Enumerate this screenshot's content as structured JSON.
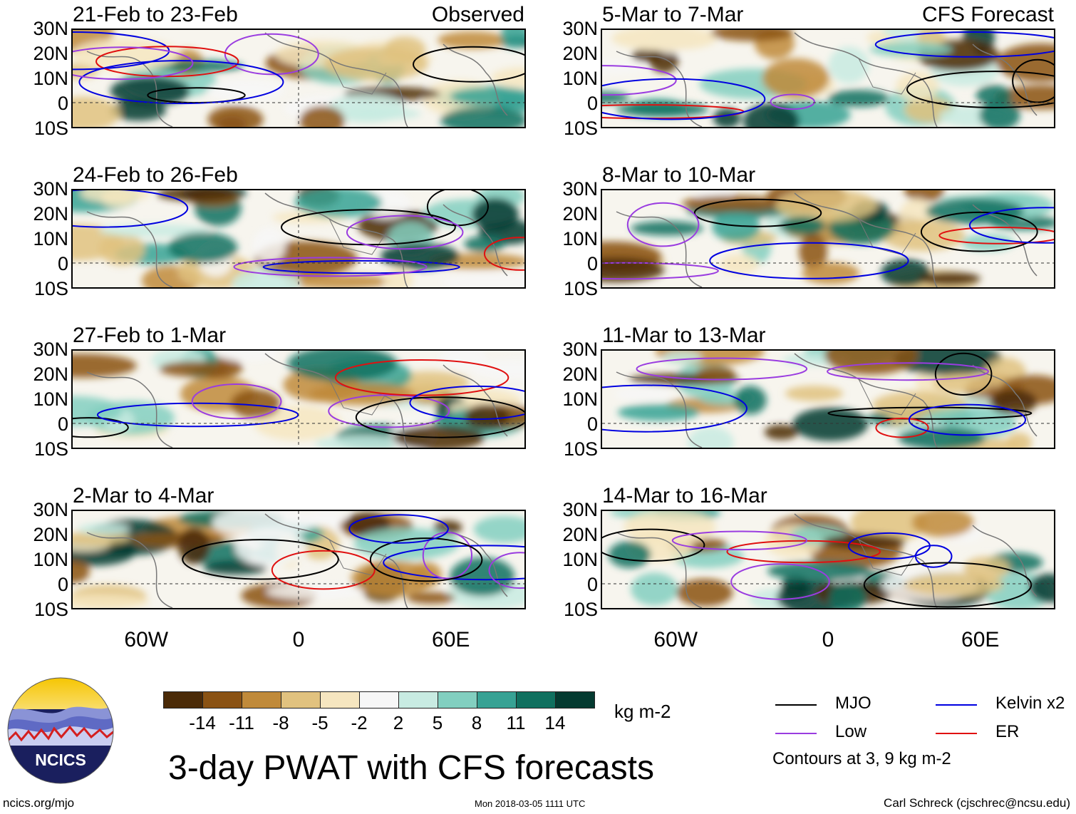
{
  "panels": [
    {
      "title": "21-Feb to 23-Feb",
      "tag": "Observed",
      "seed": 1
    },
    {
      "title": "5-Mar to 7-Mar",
      "tag": "CFS Forecast",
      "seed": 2
    },
    {
      "title": "24-Feb to 26-Feb",
      "tag": "",
      "seed": 3
    },
    {
      "title": "8-Mar to 10-Mar",
      "tag": "",
      "seed": 4
    },
    {
      "title": "27-Feb to 1-Mar",
      "tag": "",
      "seed": 5
    },
    {
      "title": "11-Mar to 13-Mar",
      "tag": "",
      "seed": 6
    },
    {
      "title": "2-Mar to 4-Mar",
      "tag": "",
      "seed": 7
    },
    {
      "title": "14-Mar to 16-Mar",
      "tag": "",
      "seed": 8
    }
  ],
  "lat_labels": [
    "30N",
    "20N",
    "10N",
    "0",
    "10S"
  ],
  "lon_labels": [
    "60W",
    "0",
    "60E"
  ],
  "colorbar": {
    "colors": [
      "#4a2a07",
      "#8a5213",
      "#c08a3a",
      "#e1c27f",
      "#f6e6c0",
      "#f7f7f7",
      "#c8ebe2",
      "#82cfc0",
      "#37a294",
      "#10705f",
      "#043a30"
    ],
    "labels": [
      "-14",
      "-11",
      "-8",
      "-5",
      "-2",
      "2",
      "5",
      "8",
      "11",
      "14"
    ],
    "units": "kg m-2"
  },
  "legend": {
    "items": [
      {
        "label": "MJO",
        "color": "#000000"
      },
      {
        "label": "Kelvin x2",
        "color": "#0000e0"
      },
      {
        "label": "Low",
        "color": "#9a3ce0"
      },
      {
        "label": "ER",
        "color": "#e01010"
      }
    ],
    "note": "Contours at 3, 9 kg m-2"
  },
  "main_title": "3-day PWAT with CFS forecasts",
  "logo_text": "NCICS",
  "footer": {
    "left": "ncics.org/mjo",
    "center": "Mon 2018-03-05 1111 UTC",
    "right": "Carl Schreck (cjschrec@ncsu.edu)"
  }
}
